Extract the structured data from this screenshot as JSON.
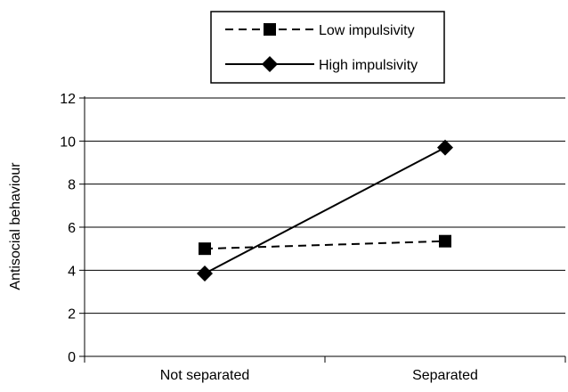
{
  "chart_data": {
    "type": "line",
    "title": "",
    "xlabel": "",
    "ylabel": "Antisocial behaviour",
    "categories": [
      "Not separated",
      "Separated"
    ],
    "ylim": [
      0,
      12
    ],
    "yticks": [
      0,
      2,
      4,
      6,
      8,
      10,
      12
    ],
    "grid": true,
    "legend_position": "top-center",
    "series": [
      {
        "name": "Low impulsivity",
        "values": [
          5.0,
          5.35
        ],
        "line_style": "dashed",
        "marker": "square",
        "color": "#000000"
      },
      {
        "name": "High impulsivity",
        "values": [
          3.85,
          9.7
        ],
        "line_style": "solid",
        "marker": "diamond",
        "color": "#000000"
      }
    ]
  }
}
